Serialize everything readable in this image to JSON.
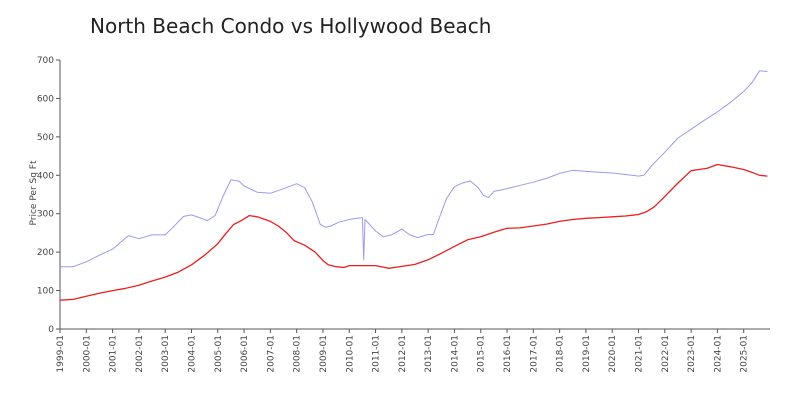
{
  "chart_data": {
    "type": "line",
    "title": "North Beach Condo vs Hollywood Beach",
    "xlabel": "",
    "ylabel": "Price Per Sq Ft",
    "ylim": [
      0,
      700
    ],
    "yticks": [
      0,
      100,
      200,
      300,
      400,
      500,
      600,
      700
    ],
    "xlim": [
      1999.0,
      2026.0
    ],
    "xticks": [
      "1999-01",
      "2000-01",
      "2001-01",
      "2002-01",
      "2003-01",
      "2004-01",
      "2005-01",
      "2006-01",
      "2007-01",
      "2008-01",
      "2009-01",
      "2010-01",
      "2011-01",
      "2012-01",
      "2013-01",
      "2014-01",
      "2015-01",
      "2016-01",
      "2017-01",
      "2018-01",
      "2019-01",
      "2020-01",
      "2021-01",
      "2022-01",
      "2023-01",
      "2024-01",
      "2025-01"
    ],
    "grid": false,
    "series": [
      {
        "color": "#9a9af0",
        "x": [
          1999.0,
          1999.5,
          2000.0,
          2000.5,
          2001.0,
          2001.3,
          2001.6,
          2002.0,
          2002.5,
          2003.0,
          2003.3,
          2003.7,
          2004.0,
          2004.3,
          2004.6,
          2004.9,
          2005.2,
          2005.5,
          2005.8,
          2006.0,
          2006.5,
          2007.0,
          2007.5,
          2008.0,
          2008.3,
          2008.6,
          2008.9,
          2009.1,
          2009.3,
          2009.6,
          2010.0,
          2010.3,
          2010.5,
          2010.55,
          2010.6,
          2011.0,
          2011.3,
          2011.6,
          2012.0,
          2012.3,
          2012.6,
          2013.0,
          2013.2,
          2013.4,
          2013.7,
          2014.0,
          2014.3,
          2014.6,
          2014.9,
          2015.1,
          2015.3,
          2015.5,
          2016.0,
          2016.5,
          2017.0,
          2017.5,
          2018.0,
          2018.5,
          2019.0,
          2019.5,
          2020.0,
          2020.5,
          2021.0,
          2021.2,
          2021.5,
          2022.0,
          2022.5,
          2023.0,
          2023.5,
          2024.0,
          2024.5,
          2025.0,
          2025.3,
          2025.6,
          2025.9
        ],
        "y": [
          162,
          162,
          175,
          192,
          208,
          225,
          243,
          235,
          245,
          245,
          265,
          293,
          297,
          290,
          282,
          295,
          345,
          388,
          385,
          372,
          356,
          353,
          365,
          378,
          368,
          330,
          272,
          265,
          268,
          278,
          285,
          288,
          290,
          180,
          285,
          255,
          240,
          245,
          260,
          245,
          238,
          246,
          246,
          285,
          340,
          370,
          380,
          385,
          368,
          348,
          342,
          358,
          365,
          374,
          382,
          392,
          405,
          413,
          410,
          408,
          406,
          402,
          398,
          400,
          425,
          460,
          497,
          520,
          543,
          565,
          590,
          618,
          640,
          672,
          670
        ],
        "line_width": 1
      },
      {
        "color": "#e8201e",
        "x": [
          1999.0,
          1999.5,
          2000.0,
          2000.5,
          2001.0,
          2001.5,
          2002.0,
          2002.5,
          2003.0,
          2003.5,
          2004.0,
          2004.5,
          2005.0,
          2005.3,
          2005.6,
          2005.9,
          2006.2,
          2006.5,
          2006.8,
          2007.0,
          2007.3,
          2007.6,
          2007.9,
          2008.3,
          2008.7,
          2009.0,
          2009.2,
          2009.5,
          2009.8,
          2010.0,
          2010.5,
          2011.0,
          2011.5,
          2012.0,
          2012.5,
          2013.0,
          2013.5,
          2014.0,
          2014.5,
          2015.0,
          2015.5,
          2016.0,
          2016.5,
          2017.0,
          2017.5,
          2018.0,
          2018.5,
          2019.0,
          2019.5,
          2020.0,
          2020.5,
          2021.0,
          2021.3,
          2021.6,
          2022.0,
          2022.5,
          2023.0,
          2023.3,
          2023.6,
          2024.0,
          2024.5,
          2025.0,
          2025.3,
          2025.6,
          2025.9
        ],
        "y": [
          75,
          77,
          85,
          93,
          100,
          106,
          114,
          125,
          135,
          148,
          167,
          192,
          222,
          248,
          272,
          282,
          295,
          292,
          285,
          280,
          268,
          252,
          230,
          218,
          200,
          178,
          167,
          162,
          160,
          165,
          165,
          165,
          158,
          163,
          168,
          180,
          197,
          215,
          232,
          240,
          252,
          262,
          263,
          268,
          273,
          280,
          285,
          288,
          290,
          292,
          294,
          298,
          305,
          318,
          345,
          380,
          412,
          415,
          418,
          428,
          422,
          415,
          408,
          400,
          398
        ],
        "line_width": 1.3
      }
    ]
  }
}
